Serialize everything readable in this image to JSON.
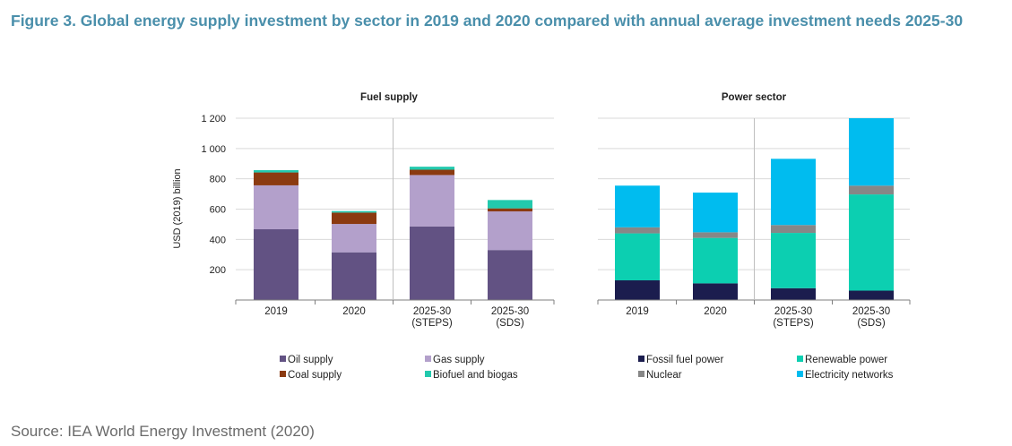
{
  "title": "Figure 3. Global energy supply investment by sector in 2019 and 2020 compared with annual average investment needs 2025-30",
  "source": "Source: IEA World Energy Investment (2020)",
  "chart_data": {
    "type": "bar",
    "stacked": true,
    "ylabel": "USD (2019) billion",
    "ylim": [
      0,
      1200
    ],
    "yticks": [
      200,
      400,
      600,
      800,
      1000,
      1200
    ],
    "ytick_labels": [
      "200",
      "400",
      "600",
      "800",
      "1 000",
      "1 200"
    ],
    "panels": [
      {
        "title": "Fuel supply",
        "categories": [
          [
            "2019"
          ],
          [
            "2020"
          ],
          [
            "2025-30",
            "(STEPS)"
          ],
          [
            "2025-30",
            "(SDS)"
          ]
        ],
        "series": [
          {
            "name": "Oil supply",
            "color": "#625283",
            "values": [
              467,
              315,
              485,
              330
            ]
          },
          {
            "name": "Gas supply",
            "color": "#b3a0cb",
            "values": [
              290,
              187,
              340,
              255
            ]
          },
          {
            "name": "Coal supply",
            "color": "#8b3a10",
            "values": [
              85,
              75,
              35,
              20
            ]
          },
          {
            "name": "Biofuel and biogas",
            "color": "#22c9ad",
            "values": [
              15,
              10,
              20,
              55
            ]
          }
        ]
      },
      {
        "title": "Power sector",
        "categories": [
          [
            "2019"
          ],
          [
            "2020"
          ],
          [
            "2025-30",
            "(STEPS)"
          ],
          [
            "2025-30",
            "(SDS)"
          ]
        ],
        "series": [
          {
            "name": "Fossil fuel power",
            "color": "#1b1d4e",
            "values": [
              130,
              110,
              78,
              62
            ]
          },
          {
            "name": "Renewable power",
            "color": "#0ccfb1",
            "values": [
              310,
              300,
              365,
              635
            ]
          },
          {
            "name": "Nuclear",
            "color": "#878787",
            "values": [
              40,
              37,
              52,
              58
            ]
          },
          {
            "name": "Electricity networks",
            "color": "#00bcef",
            "values": [
              275,
              262,
              437,
              445
            ]
          }
        ]
      }
    ],
    "legend": [
      [
        "Oil supply",
        "Gas supply",
        "Fossil fuel power",
        "Renewable power"
      ],
      [
        "Coal supply",
        "Biofuel and biogas",
        "Nuclear",
        "Electricity networks"
      ]
    ]
  }
}
